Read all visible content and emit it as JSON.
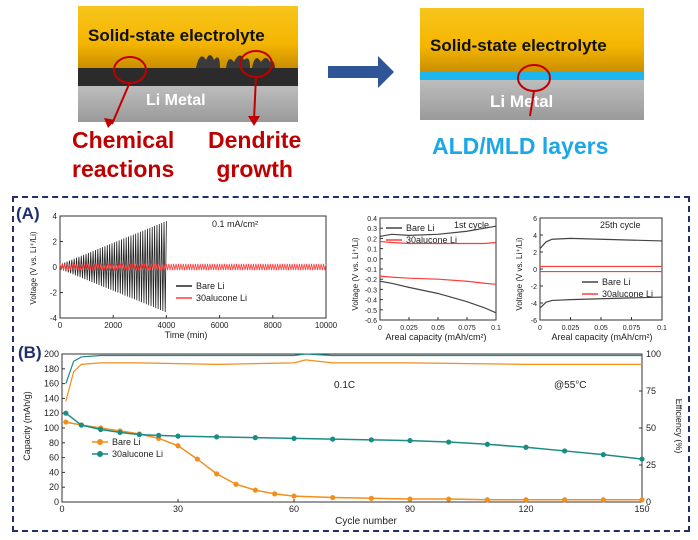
{
  "schematic": {
    "left": {
      "electrolyte_label": "Solid-state electrolyte",
      "metal_label": "Li Metal",
      "annotation_1_line1": "Chemical",
      "annotation_1_line2": "reactions",
      "annotation_2_line1": "Dendrite",
      "annotation_2_line2": "growth"
    },
    "right": {
      "electrolyte_label": "Solid-state electrolyte",
      "metal_label": "Li Metal",
      "interlayer_label": "ALD/MLD layers"
    },
    "colors": {
      "electrolyte": "#f5b500",
      "li_metal": "#a8a8a8",
      "interlayer": "#1db7ee",
      "annotation": "#c00000",
      "arrow": "#2f5597"
    }
  },
  "panel_labels": {
    "a": "(A)",
    "b": "(B)"
  },
  "chart_data": [
    {
      "id": "A1",
      "type": "line",
      "annotation": "0.1 mA/cm²",
      "xlabel": "Time (min)",
      "ylabel": "Voltage (V vs. Li⁺/Li)",
      "xlim": [
        0,
        10000
      ],
      "ylim": [
        -4,
        4
      ],
      "xticks": [
        0,
        2000,
        4000,
        6000,
        8000,
        10000
      ],
      "yticks": [
        -4,
        -2,
        0,
        2,
        4
      ],
      "series": [
        {
          "name": "Bare Li",
          "color": "#222222",
          "t_end": 4000,
          "amp_start": 0.2,
          "amp_end": 3.6,
          "cycles": 45
        },
        {
          "name": "30alucone Li",
          "color": "#ff3b3b",
          "t_end": 10000,
          "amp_start": 0.25,
          "amp_end": 0.25,
          "cycles": 110
        }
      ]
    },
    {
      "id": "A2",
      "type": "line",
      "annotation": "1st cycle",
      "xlabel": "Areal capacity (mAh/cm²)",
      "ylabel": "Voltage (V vs. Li⁺/Li)",
      "xlim": [
        0,
        0.1
      ],
      "ylim": [
        -0.6,
        0.4
      ],
      "xticks": [
        0,
        0.025,
        0.05,
        0.075,
        0.1
      ],
      "yticks": [
        -0.6,
        -0.5,
        -0.4,
        -0.3,
        -0.2,
        -0.1,
        0.0,
        0.1,
        0.2,
        0.3,
        0.4
      ],
      "series": [
        {
          "name": "Bare Li",
          "color": "#444444",
          "x": [
            0,
            0.01,
            0.025,
            0.05,
            0.075,
            0.09,
            0.1
          ],
          "y": [
            0.22,
            0.24,
            0.23,
            0.24,
            0.27,
            0.3,
            0.32
          ],
          "y2": [
            -0.22,
            -0.24,
            -0.28,
            -0.34,
            -0.42,
            -0.48,
            -0.53
          ]
        },
        {
          "name": "30alucone Li",
          "color": "#ff3b3b",
          "x": [
            0,
            0.01,
            0.025,
            0.05,
            0.075,
            0.09,
            0.1
          ],
          "y": [
            0.17,
            0.16,
            0.15,
            0.15,
            0.15,
            0.15,
            0.16
          ],
          "y2": [
            -0.17,
            -0.18,
            -0.19,
            -0.2,
            -0.22,
            -0.24,
            -0.25
          ]
        }
      ]
    },
    {
      "id": "A3",
      "type": "line",
      "annotation": "25th cycle",
      "xlabel": "Areal capacity (mAh/cm²)",
      "ylabel": "Voltage (V vs. Li⁺/Li)",
      "xlim": [
        0,
        0.1
      ],
      "ylim": [
        -6,
        6
      ],
      "xticks": [
        0,
        0.025,
        0.05,
        0.075,
        0.1
      ],
      "yticks": [
        -6,
        -4,
        -2,
        0,
        2,
        4,
        6
      ],
      "series": [
        {
          "name": "Bare Li",
          "color": "#444444",
          "x": [
            0,
            0.005,
            0.01,
            0.025,
            0.05,
            0.075,
            0.1
          ],
          "y": [
            2.4,
            3.2,
            3.5,
            3.6,
            3.5,
            3.4,
            3.3
          ],
          "y2": [
            -4.6,
            -3.9,
            -3.7,
            -3.6,
            -3.5,
            -3.4,
            -3.3
          ]
        },
        {
          "name": "30alucone Li",
          "color": "#ff3b3b",
          "x": [
            0,
            0.025,
            0.05,
            0.075,
            0.1
          ],
          "y": [
            0.3,
            0.3,
            0.3,
            0.3,
            0.3
          ],
          "y2": [
            -0.3,
            -0.3,
            -0.3,
            -0.3,
            -0.3
          ]
        }
      ]
    },
    {
      "id": "B",
      "type": "scatter",
      "annotation_1": "0.1C",
      "annotation_2": "@55°C",
      "xlabel": "Cycle number",
      "ylabel": "Capacity (mAh/g)",
      "y2label": "Efficiency (%)",
      "xlim": [
        0,
        150
      ],
      "ylim": [
        0,
        200
      ],
      "y2lim": [
        0,
        100
      ],
      "xticks": [
        0,
        30,
        60,
        90,
        120,
        150
      ],
      "yticks": [
        0,
        20,
        40,
        60,
        80,
        100,
        120,
        140,
        160,
        180,
        200
      ],
      "y2ticks": [
        0,
        25,
        50,
        75,
        100
      ],
      "series": [
        {
          "name": "Bare Li",
          "color": "#f28e1c",
          "x": [
            1,
            5,
            10,
            15,
            20,
            25,
            30,
            35,
            40,
            45,
            50,
            55,
            60,
            70,
            80,
            90,
            100,
            110,
            120,
            130,
            140,
            150
          ],
          "y": [
            108,
            104,
            100,
            96,
            92,
            86,
            76,
            58,
            38,
            24,
            16,
            11,
            8,
            6,
            5,
            4,
            4,
            3,
            3,
            3,
            3,
            3
          ]
        },
        {
          "name": "30alucone Li",
          "color": "#1a8c86",
          "x": [
            1,
            5,
            10,
            15,
            20,
            25,
            30,
            40,
            50,
            60,
            70,
            80,
            90,
            100,
            110,
            120,
            130,
            140,
            150
          ],
          "y": [
            120,
            104,
            98,
            94,
            91,
            90,
            89,
            88,
            87,
            86,
            85,
            84,
            83,
            81,
            78,
            74,
            69,
            64,
            58
          ]
        },
        {
          "name": "Bare Li efficiency",
          "axis": "y2",
          "color": "#f28e1c",
          "x": [
            1,
            3,
            5,
            10,
            20,
            40,
            60,
            63,
            70,
            90,
            120,
            150
          ],
          "y": [
            68,
            88,
            93,
            94,
            94,
            93,
            94,
            96,
            94,
            94,
            93,
            93
          ]
        },
        {
          "name": "30alucone Li efficiency",
          "axis": "y2",
          "color": "#1a8c86",
          "x": [
            1,
            3,
            5,
            10,
            20,
            40,
            60,
            63,
            70,
            90,
            120,
            150
          ],
          "y": [
            80,
            95,
            98,
            99,
            99,
            99,
            99,
            100,
            99,
            99,
            99,
            99
          ]
        }
      ]
    }
  ]
}
